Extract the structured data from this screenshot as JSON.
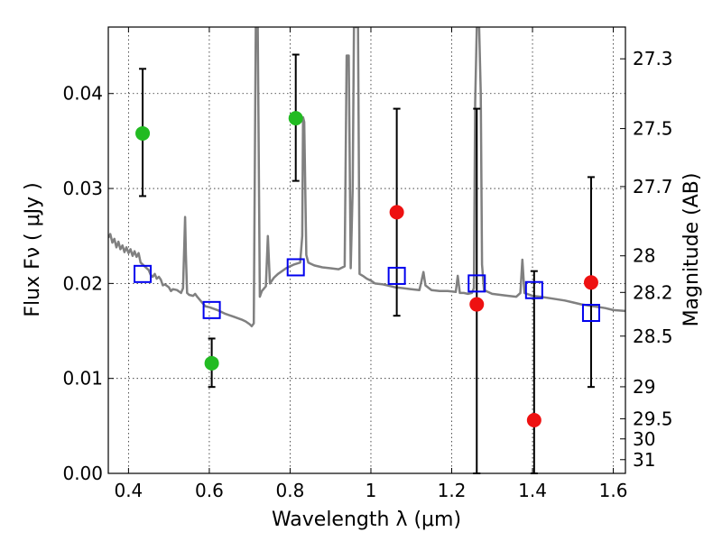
{
  "chart_data": {
    "type": "scatter",
    "title": "",
    "xlabel": "Wavelength  λ (μm)",
    "ylabel": "Flux  Fν  ( μJy )",
    "ylabel_right": "Magnitude (AB)",
    "xlim": [
      0.35,
      1.63
    ],
    "ylim": [
      0.0,
      0.047
    ],
    "grid": true,
    "x_ticks": [
      {
        "value": 0.4,
        "label": "0.4"
      },
      {
        "value": 0.6,
        "label": "0.6"
      },
      {
        "value": 0.8,
        "label": "0.8"
      },
      {
        "value": 1.0,
        "label": "1"
      },
      {
        "value": 1.2,
        "label": "1.2"
      },
      {
        "value": 1.4,
        "label": "1.4"
      },
      {
        "value": 1.6,
        "label": "1.6"
      }
    ],
    "y_ticks": [
      {
        "value": 0.0,
        "label": "0.00"
      },
      {
        "value": 0.01,
        "label": "0.01"
      },
      {
        "value": 0.02,
        "label": "0.02"
      },
      {
        "value": 0.03,
        "label": "0.03"
      },
      {
        "value": 0.04,
        "label": "0.04"
      }
    ],
    "y2_ticks": [
      {
        "value": 27.3,
        "label": "27.3"
      },
      {
        "value": 27.5,
        "label": "27.5"
      },
      {
        "value": 27.7,
        "label": "27.7"
      },
      {
        "value": 28.0,
        "label": "28"
      },
      {
        "value": 28.2,
        "label": "28.2"
      },
      {
        "value": 28.5,
        "label": "28.5"
      },
      {
        "value": 29.0,
        "label": "29"
      },
      {
        "value": 29.5,
        "label": "29.5"
      },
      {
        "value": 30.0,
        "label": "30"
      },
      {
        "value": 31.0,
        "label": "31"
      }
    ],
    "series": [
      {
        "kind": "points",
        "marker": "circle",
        "color": "#22bb22",
        "points": [
          {
            "x": 0.435,
            "y": 0.0358,
            "yerr_low": 0.0292,
            "yerr_high": 0.0426
          },
          {
            "x": 0.606,
            "y": 0.0116,
            "yerr_low": 0.0091,
            "yerr_high": 0.0142
          },
          {
            "x": 0.814,
            "y": 0.0374,
            "yerr_low": 0.0308,
            "yerr_high": 0.0441
          }
        ]
      },
      {
        "kind": "points",
        "marker": "circle",
        "color": "#ee1111",
        "points": [
          {
            "x": 1.064,
            "y": 0.0275,
            "yerr_low": 0.0166,
            "yerr_high": 0.0384
          },
          {
            "x": 1.262,
            "y": 0.0178,
            "yerr_low": 0.0,
            "yerr_high": 0.0384
          },
          {
            "x": 1.404,
            "y": 0.0056,
            "yerr_low": 0.0,
            "yerr_high": 0.0213
          },
          {
            "x": 1.545,
            "y": 0.0201,
            "yerr_low": 0.0091,
            "yerr_high": 0.0312
          }
        ]
      },
      {
        "kind": "points",
        "marker": "open-square",
        "color": "#0000ee",
        "points": [
          {
            "x": 0.435,
            "y": 0.021
          },
          {
            "x": 0.606,
            "y": 0.0172
          },
          {
            "x": 0.814,
            "y": 0.0217
          },
          {
            "x": 1.064,
            "y": 0.0208
          },
          {
            "x": 1.262,
            "y": 0.02
          },
          {
            "x": 1.404,
            "y": 0.0193
          },
          {
            "x": 1.545,
            "y": 0.0169
          }
        ]
      },
      {
        "kind": "line",
        "color": "#808080",
        "points": [
          [
            0.35,
            0.0248
          ],
          [
            0.355,
            0.0252
          ],
          [
            0.36,
            0.0243
          ],
          [
            0.365,
            0.0247
          ],
          [
            0.37,
            0.0238
          ],
          [
            0.375,
            0.0244
          ],
          [
            0.38,
            0.0236
          ],
          [
            0.385,
            0.024
          ],
          [
            0.39,
            0.0233
          ],
          [
            0.395,
            0.0238
          ],
          [
            0.4,
            0.0232
          ],
          [
            0.405,
            0.0236
          ],
          [
            0.41,
            0.0229
          ],
          [
            0.415,
            0.0234
          ],
          [
            0.42,
            0.0228
          ],
          [
            0.425,
            0.0232
          ],
          [
            0.43,
            0.0222
          ],
          [
            0.44,
            0.0218
          ],
          [
            0.45,
            0.0214
          ],
          [
            0.455,
            0.0209
          ],
          [
            0.46,
            0.0207
          ],
          [
            0.465,
            0.021
          ],
          [
            0.47,
            0.0205
          ],
          [
            0.475,
            0.0207
          ],
          [
            0.48,
            0.0204
          ],
          [
            0.485,
            0.0198
          ],
          [
            0.49,
            0.0199
          ],
          [
            0.5,
            0.0196
          ],
          [
            0.505,
            0.0192
          ],
          [
            0.51,
            0.0194
          ],
          [
            0.52,
            0.0193
          ],
          [
            0.53,
            0.019
          ],
          [
            0.535,
            0.0195
          ],
          [
            0.538,
            0.024
          ],
          [
            0.54,
            0.027
          ],
          [
            0.542,
            0.023
          ],
          [
            0.545,
            0.019
          ],
          [
            0.55,
            0.0188
          ],
          [
            0.56,
            0.0187
          ],
          [
            0.565,
            0.0189
          ],
          [
            0.57,
            0.0186
          ],
          [
            0.58,
            0.0181
          ],
          [
            0.59,
            0.0176
          ],
          [
            0.6,
            0.0175
          ],
          [
            0.62,
            0.0172
          ],
          [
            0.64,
            0.0168
          ],
          [
            0.66,
            0.0165
          ],
          [
            0.68,
            0.0162
          ],
          [
            0.69,
            0.016
          ],
          [
            0.7,
            0.0157
          ],
          [
            0.705,
            0.0155
          ],
          [
            0.71,
            0.0158
          ],
          [
            0.715,
            0.047
          ],
          [
            0.72,
            0.047
          ],
          [
            0.725,
            0.0186
          ],
          [
            0.73,
            0.0192
          ],
          [
            0.74,
            0.0197
          ],
          [
            0.745,
            0.025
          ],
          [
            0.75,
            0.02
          ],
          [
            0.76,
            0.0206
          ],
          [
            0.77,
            0.021
          ],
          [
            0.78,
            0.0213
          ],
          [
            0.79,
            0.0216
          ],
          [
            0.8,
            0.0218
          ],
          [
            0.81,
            0.022
          ],
          [
            0.825,
            0.0222
          ],
          [
            0.83,
            0.025
          ],
          [
            0.832,
            0.0375
          ],
          [
            0.835,
            0.037
          ],
          [
            0.84,
            0.023
          ],
          [
            0.845,
            0.0222
          ],
          [
            0.86,
            0.0219
          ],
          [
            0.88,
            0.0217
          ],
          [
            0.9,
            0.0216
          ],
          [
            0.92,
            0.0215
          ],
          [
            0.935,
            0.0218
          ],
          [
            0.94,
            0.044
          ],
          [
            0.945,
            0.044
          ],
          [
            0.95,
            0.0216
          ],
          [
            0.955,
            0.03
          ],
          [
            0.958,
            0.047
          ],
          [
            0.962,
            0.047
          ],
          [
            0.965,
            0.047
          ],
          [
            0.968,
            0.047
          ],
          [
            0.972,
            0.021
          ],
          [
            0.98,
            0.0208
          ],
          [
            0.99,
            0.0205
          ],
          [
            1.0,
            0.0203
          ],
          [
            1.01,
            0.02
          ],
          [
            1.03,
            0.0199
          ],
          [
            1.05,
            0.0197
          ],
          [
            1.06,
            0.0196
          ],
          [
            1.08,
            0.0195
          ],
          [
            1.1,
            0.0194
          ],
          [
            1.12,
            0.0193
          ],
          [
            1.125,
            0.0202
          ],
          [
            1.13,
            0.0212
          ],
          [
            1.135,
            0.0198
          ],
          [
            1.15,
            0.0193
          ],
          [
            1.17,
            0.0192
          ],
          [
            1.19,
            0.0192
          ],
          [
            1.21,
            0.0191
          ],
          [
            1.215,
            0.0208
          ],
          [
            1.22,
            0.019
          ],
          [
            1.23,
            0.019
          ],
          [
            1.24,
            0.0189
          ],
          [
            1.25,
            0.019
          ],
          [
            1.255,
            0.0195
          ],
          [
            1.258,
            0.039
          ],
          [
            1.262,
            0.047
          ],
          [
            1.268,
            0.047
          ],
          [
            1.272,
            0.04
          ],
          [
            1.275,
            0.022
          ],
          [
            1.28,
            0.0193
          ],
          [
            1.3,
            0.0189
          ],
          [
            1.32,
            0.0188
          ],
          [
            1.34,
            0.0187
          ],
          [
            1.36,
            0.0186
          ],
          [
            1.37,
            0.019
          ],
          [
            1.375,
            0.0225
          ],
          [
            1.38,
            0.019
          ],
          [
            1.4,
            0.0187
          ],
          [
            1.42,
            0.0186
          ],
          [
            1.45,
            0.0184
          ],
          [
            1.48,
            0.0182
          ],
          [
            1.5,
            0.018
          ],
          [
            1.52,
            0.0178
          ],
          [
            1.55,
            0.0176
          ],
          [
            1.58,
            0.0174
          ],
          [
            1.6,
            0.0172
          ],
          [
            1.63,
            0.0171
          ]
        ]
      }
    ]
  }
}
